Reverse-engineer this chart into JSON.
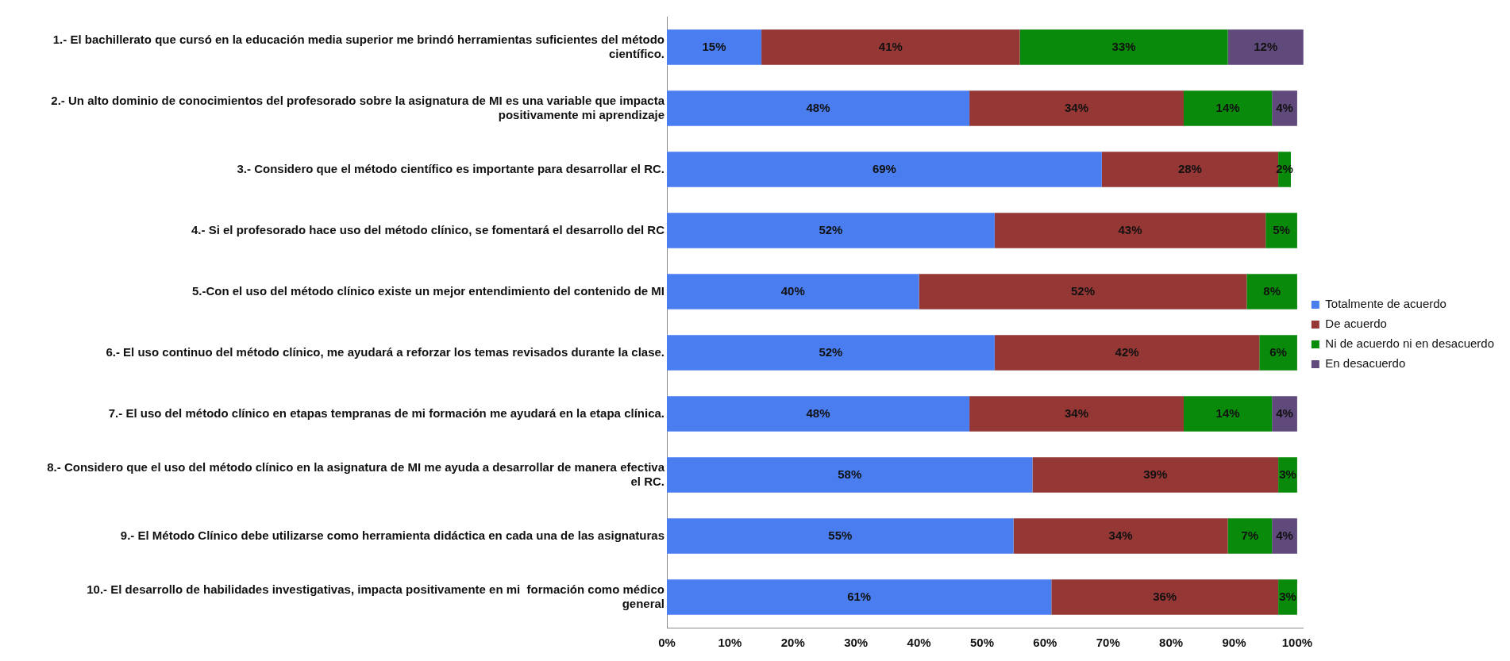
{
  "chart_data": {
    "type": "bar",
    "orientation": "horizontal",
    "stacked": true,
    "categories": [
      "1.- El bachillerato que cursó en la educación media superior me brindó herramientas suficientes del método científico.",
      "2.- Un alto dominio de conocimientos del profesorado sobre la asignatura de MI es una variable que impacta positivamente mi aprendizaje",
      "3.- Considero que el método científico es importante para desarrollar el RC.",
      "4.- Si el profesorado hace uso del método clínico, se fomentará el desarrollo del RC",
      "5.-Con el uso del método clínico existe un mejor entendimiento del contenido de MI",
      "6.- El uso continuo del método clínico, me ayudará a reforzar los temas revisados durante la clase.",
      "7.- El uso del método clínico en etapas tempranas de mi formación me ayudará en la etapa clínica.",
      "8.- Considero que el uso del método clínico en la asignatura de MI me ayuda a desarrollar de manera efectiva el RC.",
      "9.- El Método Clínico debe utilizarse como herramienta didáctica en cada una de las asignaturas",
      "10.- El desarrollo de habilidades investigativas, impacta positivamente en mi  formación como médico general"
    ],
    "series": [
      {
        "name": "Totalmente de acuerdo",
        "color": "#4a7ef0",
        "values": [
          15,
          48,
          69,
          52,
          40,
          52,
          48,
          58,
          55,
          61
        ],
        "value_labels": [
          "15%",
          "48%",
          "69%",
          "52%",
          "40%",
          "52%",
          "48%",
          "58%",
          "55%",
          "61%"
        ]
      },
      {
        "name": "De acuerdo",
        "color": "#953735",
        "values": [
          41,
          34,
          28,
          43,
          52,
          42,
          34,
          39,
          34,
          36
        ],
        "value_labels": [
          "41%",
          "34%",
          "28%",
          "43%",
          "52%",
          "42%",
          "34%",
          "39%",
          "34%",
          "36%"
        ]
      },
      {
        "name": "Ni de acuerdo ni en desacuerdo",
        "color": "#0a8a0a",
        "values": [
          33,
          14,
          2,
          5,
          8,
          6,
          14,
          3,
          7,
          3
        ],
        "value_labels": [
          "33%",
          "14%",
          "2%",
          "5%",
          "8%",
          "6%",
          "14%",
          "3%",
          "7%",
          "3%"
        ]
      },
      {
        "name": "En desacuerdo",
        "color": "#604a7b",
        "values": [
          12,
          4,
          null,
          null,
          null,
          null,
          4,
          null,
          4,
          null
        ],
        "value_labels": [
          "12%",
          "4%",
          null,
          null,
          null,
          null,
          "4%",
          null,
          "4%",
          null
        ]
      }
    ],
    "xlim": [
      0,
      101
    ],
    "xticks": [
      {
        "value": 0,
        "label": "0%"
      },
      {
        "value": 10,
        "label": "10%"
      },
      {
        "value": 20,
        "label": "20%"
      },
      {
        "value": 30,
        "label": "30%"
      },
      {
        "value": 40,
        "label": "40%"
      },
      {
        "value": 50,
        "label": "50%"
      },
      {
        "value": 60,
        "label": "60%"
      },
      {
        "value": 70,
        "label": "70%"
      },
      {
        "value": 80,
        "label": "80%"
      },
      {
        "value": 90,
        "label": "90%"
      },
      {
        "value": 100,
        "label": "100%"
      }
    ],
    "grid": false,
    "legend": "right"
  }
}
